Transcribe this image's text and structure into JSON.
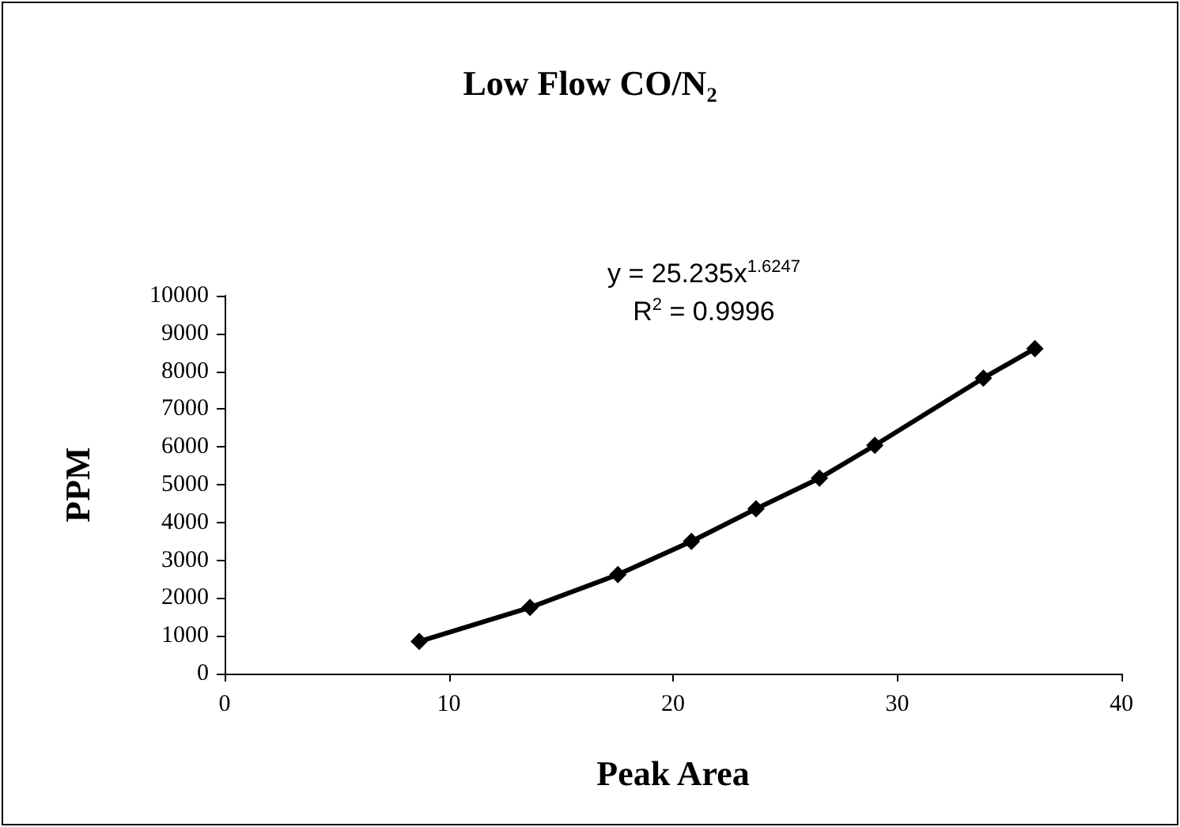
{
  "chart_data": {
    "type": "line",
    "title": "Low Flow CO/N₂",
    "xlabel": "Peak Area",
    "ylabel": "PPM",
    "annotations": [
      "y = 25.235x$^{1.6247}$",
      "R$^{2}$ = 0.9996"
    ],
    "x": [
      8.68,
      13.62,
      17.54,
      20.82,
      23.7,
      26.53,
      29.0,
      33.84,
      36.14
    ],
    "series": [
      {
        "color": "#000000",
        "values": [
          850,
          1750,
          2620,
          3500,
          4360,
          5170,
          6040,
          7820,
          8600
        ]
      }
    ],
    "xlim": [
      0,
      40
    ],
    "xticks": [
      0,
      10,
      20,
      30,
      40
    ],
    "ylim": [
      0,
      10000
    ],
    "yticks": [
      0,
      1000,
      2000,
      3000,
      4000,
      5000,
      6000,
      7000,
      8000,
      9000,
      10000
    ],
    "grid": false,
    "marker": "diamond",
    "line_style": "solid"
  }
}
